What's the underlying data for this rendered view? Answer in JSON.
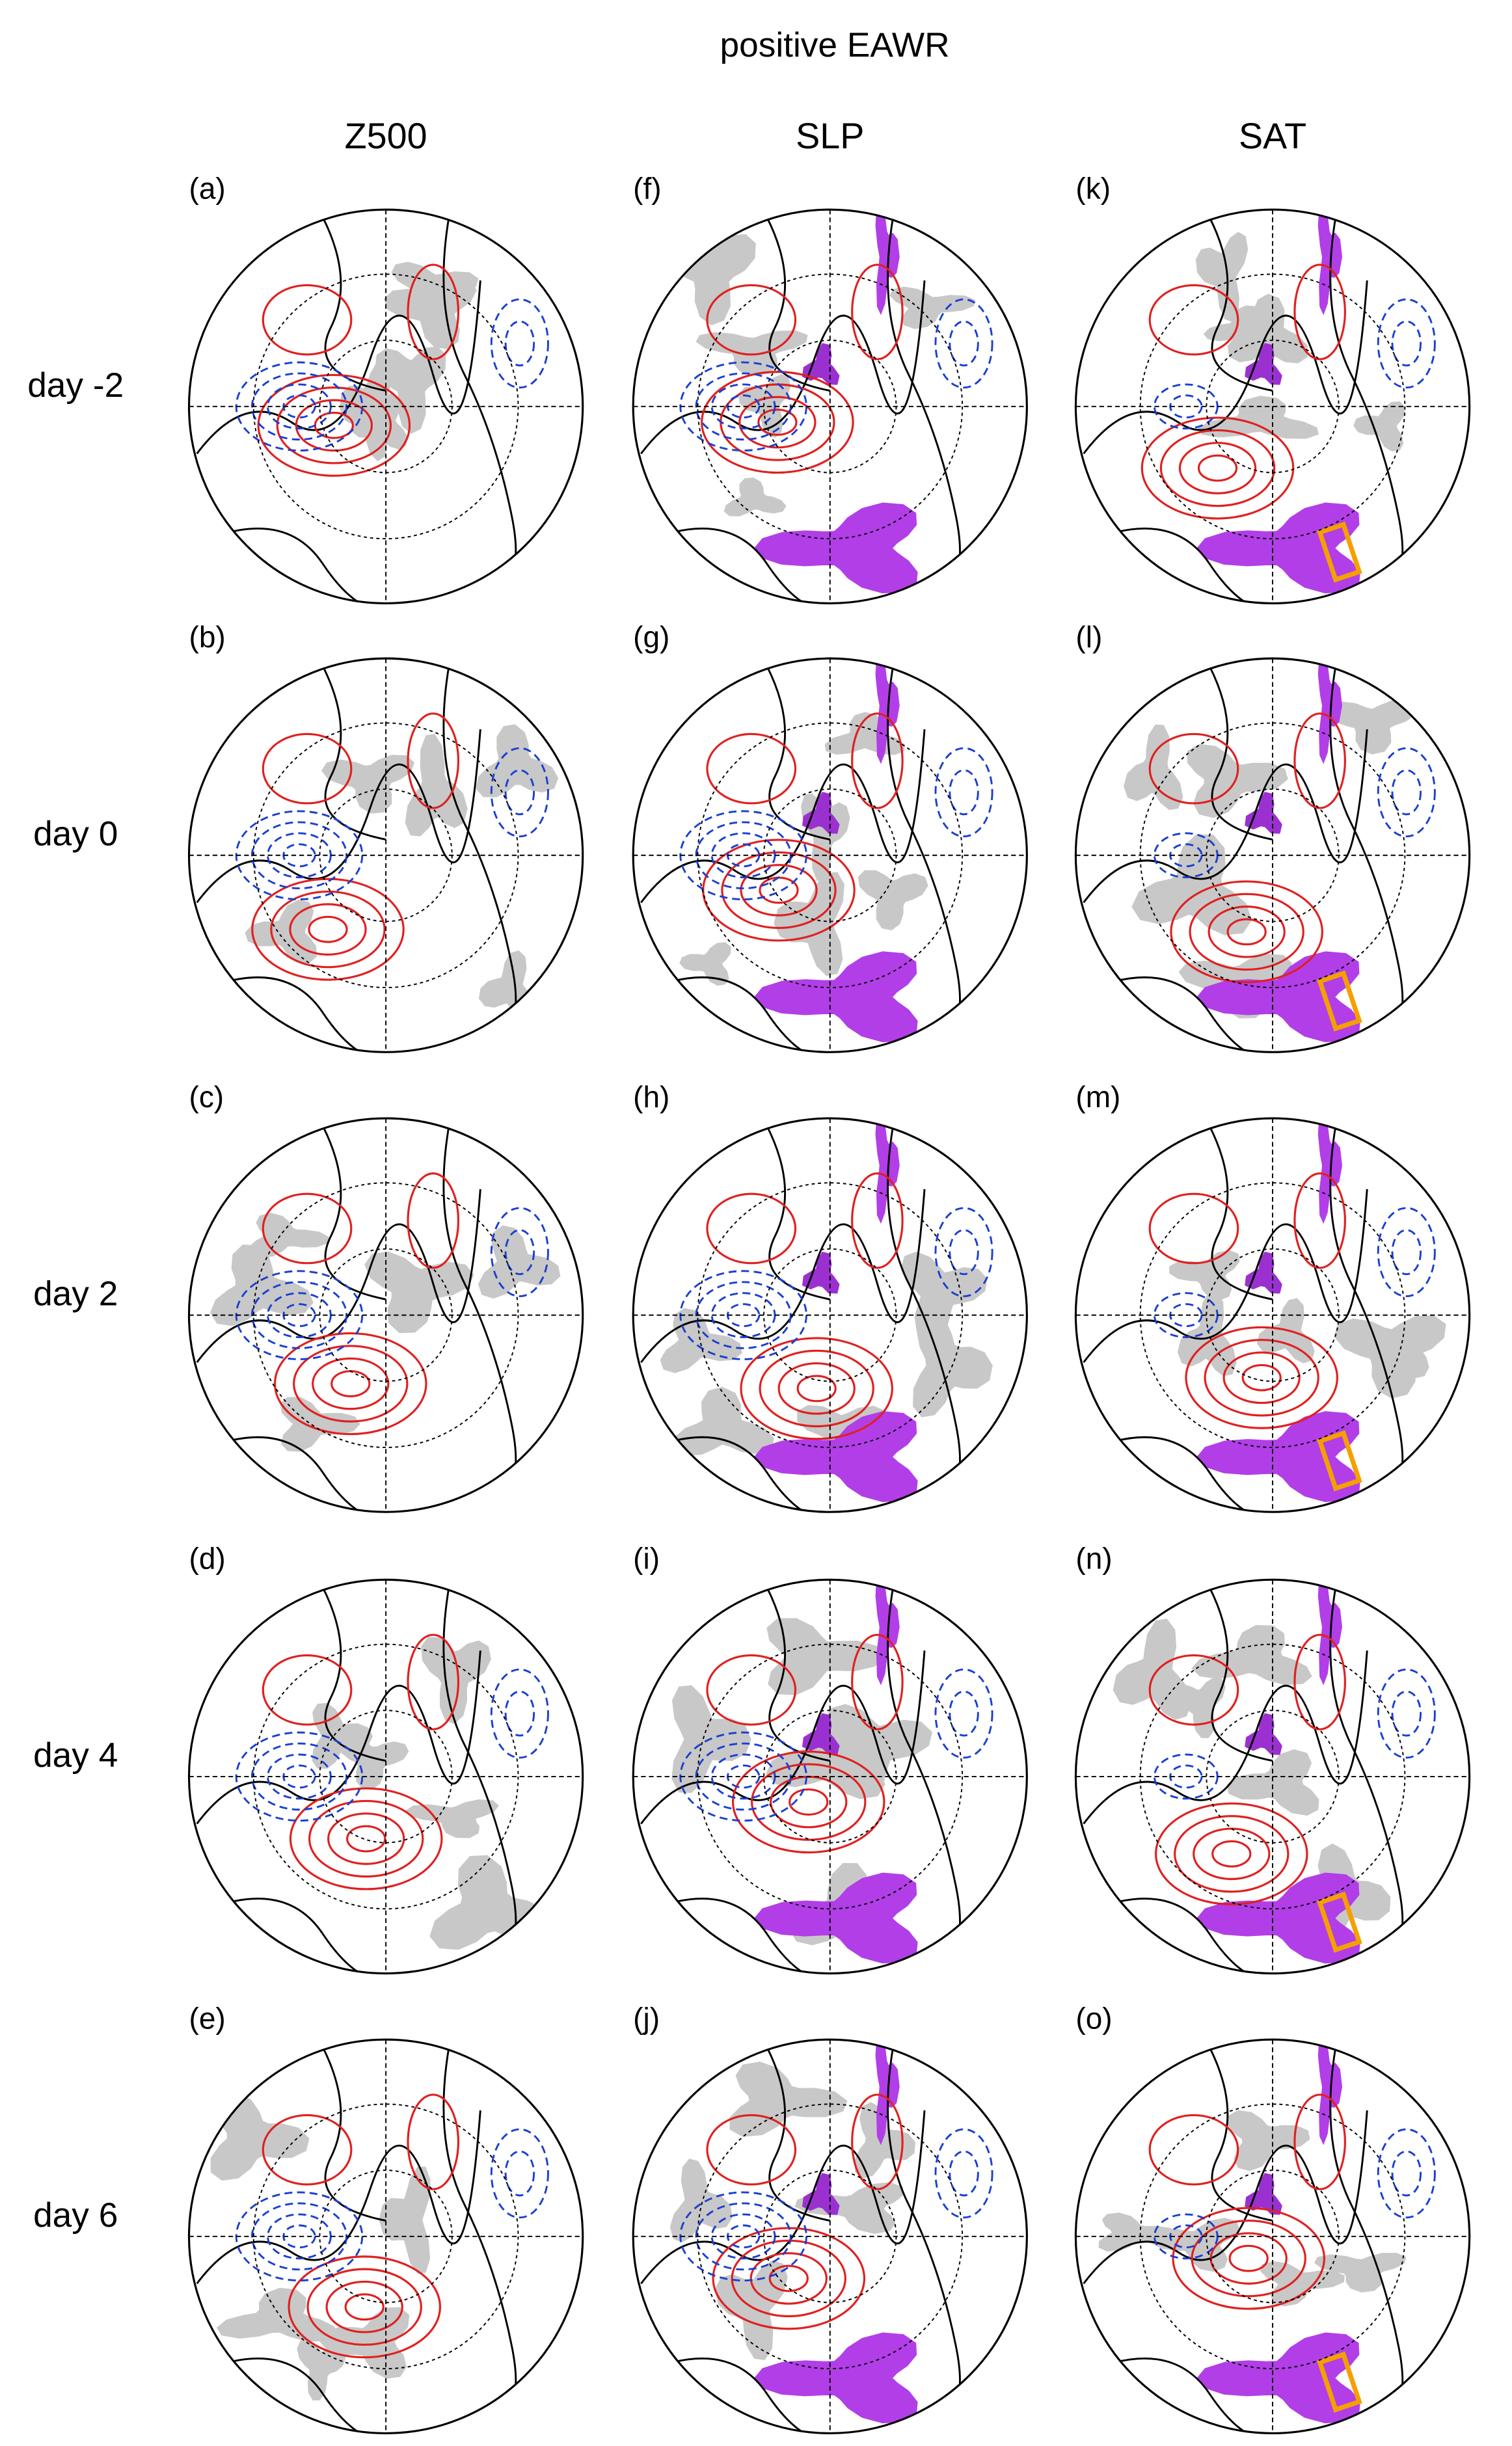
{
  "title": "positive EAWR",
  "columns": [
    "Z500",
    "SLP",
    "SAT"
  ],
  "rows": [
    "day -2",
    "day 0",
    "day 2",
    "day 4",
    "day 6"
  ],
  "panels": [
    [
      "(a)",
      "(b)",
      "(c)",
      "(d)",
      "(e)"
    ],
    [
      "(f)",
      "(g)",
      "(h)",
      "(i)",
      "(j)"
    ],
    [
      "(k)",
      "(l)",
      "(m)",
      "(n)",
      "(o)"
    ]
  ]
}
